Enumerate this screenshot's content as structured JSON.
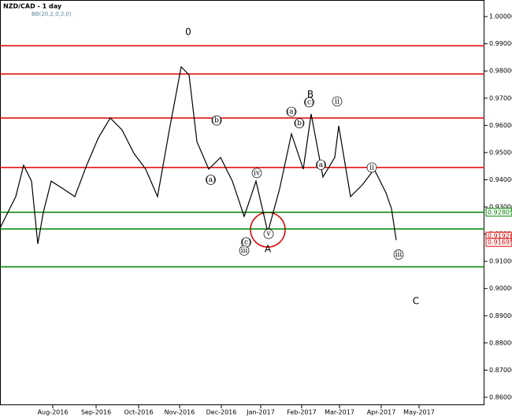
{
  "chart_data": {
    "type": "line",
    "title": "NZD/CAD - 1 day",
    "subtitle": "BB(20,2,0,2,0)",
    "x": [
      0,
      4,
      8,
      12,
      16,
      19.2,
      22,
      26,
      32,
      38,
      44,
      50,
      56,
      62,
      68,
      74,
      80,
      86,
      92,
      96,
      100,
      106,
      112,
      118,
      124,
      130,
      136,
      142,
      148,
      154,
      158,
      164,
      170,
      172,
      178,
      184,
      190,
      196,
      198.8,
      201.2
    ],
    "values": [
      0.9222,
      0.928,
      0.9338,
      0.9453,
      0.9395,
      0.9164,
      0.928,
      0.9395,
      0.9367,
      0.9338,
      0.9453,
      0.9555,
      0.9627,
      0.9583,
      0.9497,
      0.9439,
      0.9338,
      0.9583,
      0.9815,
      0.9786,
      0.954,
      0.9439,
      0.9482,
      0.9395,
      0.9265,
      0.9395,
      0.9207,
      0.9367,
      0.9569,
      0.9439,
      0.9642,
      0.941,
      0.9482,
      0.9598,
      0.9338,
      0.9381,
      0.9439,
      0.9352,
      0.9294,
      0.9178
    ],
    "color": "#000000",
    "xlim": [
      0,
      246
    ],
    "xticks": [
      {
        "value": 26.8,
        "label": "Aug-2016"
      },
      {
        "value": 48.8,
        "label": "Sep-2016"
      },
      {
        "value": 70.4,
        "label": "Oct-2016"
      },
      {
        "value": 91.2,
        "label": "Nov-2016"
      },
      {
        "value": 112.4,
        "label": "Dec-2016"
      },
      {
        "value": 132.4,
        "label": "Jan-2017"
      },
      {
        "value": 153.2,
        "label": "Feb-2017"
      },
      {
        "value": 172.4,
        "label": "Mar-2017"
      },
      {
        "value": 193.6,
        "label": "Apr-2017"
      },
      {
        "value": 212.8,
        "label": "May-2017"
      }
    ],
    "ylim": [
      0.8571,
      1.0061
    ],
    "yticks": [
      {
        "value": 0.86,
        "label": "0.86000"
      },
      {
        "value": 0.87,
        "label": "0.87000"
      },
      {
        "value": 0.88,
        "label": "0.88000"
      },
      {
        "value": 0.89,
        "label": "0.89000"
      },
      {
        "value": 0.9,
        "label": "0.90000"
      },
      {
        "value": 0.91,
        "label": "0.91000"
      },
      {
        "value": 0.92,
        "label": "0.92000"
      },
      {
        "value": 0.93,
        "label": "0.93000"
      },
      {
        "value": 0.94,
        "label": "0.94000"
      },
      {
        "value": 0.95,
        "label": "0.95000"
      },
      {
        "value": 0.96,
        "label": "0.96000"
      },
      {
        "value": 0.97,
        "label": "0.97000"
      },
      {
        "value": 0.98,
        "label": "0.98000"
      },
      {
        "value": 0.99,
        "label": "0.99000"
      },
      {
        "value": 1.0,
        "label": "1.00000"
      }
    ],
    "levels": [
      {
        "value": 0.9893,
        "color": "#e00000"
      },
      {
        "value": 0.9789,
        "color": "#e00000"
      },
      {
        "value": 0.9627,
        "color": "#e00000"
      },
      {
        "value": 0.9445,
        "color": "#e00000"
      },
      {
        "value": 0.92805,
        "color": "#008000"
      },
      {
        "value": 0.9219,
        "color": "#008000"
      },
      {
        "value": 0.908,
        "color": "#008000"
      }
    ],
    "price_labels": [
      {
        "value": 0.92805,
        "label": "0.92805",
        "color": "#008000"
      },
      {
        "value": 0.91926,
        "label": "0.91926",
        "color": "#e00000"
      },
      {
        "value": 0.91695,
        "label": "0.91695",
        "color": "#e00000"
      }
    ],
    "annotations": [
      {
        "text": "0",
        "x": 95.6,
        "y": 0.9943
      },
      {
        "text": "B",
        "x": 157.6,
        "y": 0.9713
      },
      {
        "text": "A",
        "x": 136,
        "y": 0.9144
      },
      {
        "text": "C",
        "x": 211.2,
        "y": 0.8953
      },
      {
        "text": "(a)",
        "x": 107,
        "y": 0.94
      },
      {
        "text": "(b)",
        "x": 110,
        "y": 0.9618
      },
      {
        "text": "(c)",
        "x": 125,
        "y": 0.917
      },
      {
        "text": "(a)",
        "x": 148,
        "y": 0.965
      },
      {
        "text": "(b)",
        "x": 152,
        "y": 0.9608
      },
      {
        "text": "(c)",
        "x": 157,
        "y": 0.9685
      },
      {
        "text": "(a)",
        "x": 163,
        "y": 0.9455
      },
      {
        "text": "ii",
        "x": 171.2,
        "y": 0.9688
      },
      {
        "text": "iv",
        "x": 130.4,
        "y": 0.9425
      },
      {
        "text": "v",
        "x": 136.4,
        "y": 0.9201
      },
      {
        "text": "iii",
        "x": 124,
        "y": 0.914
      },
      {
        "text": "iii",
        "x": 202.4,
        "y": 0.9125
      },
      {
        "text": "ii",
        "x": 188.8,
        "y": 0.9445
      }
    ]
  }
}
